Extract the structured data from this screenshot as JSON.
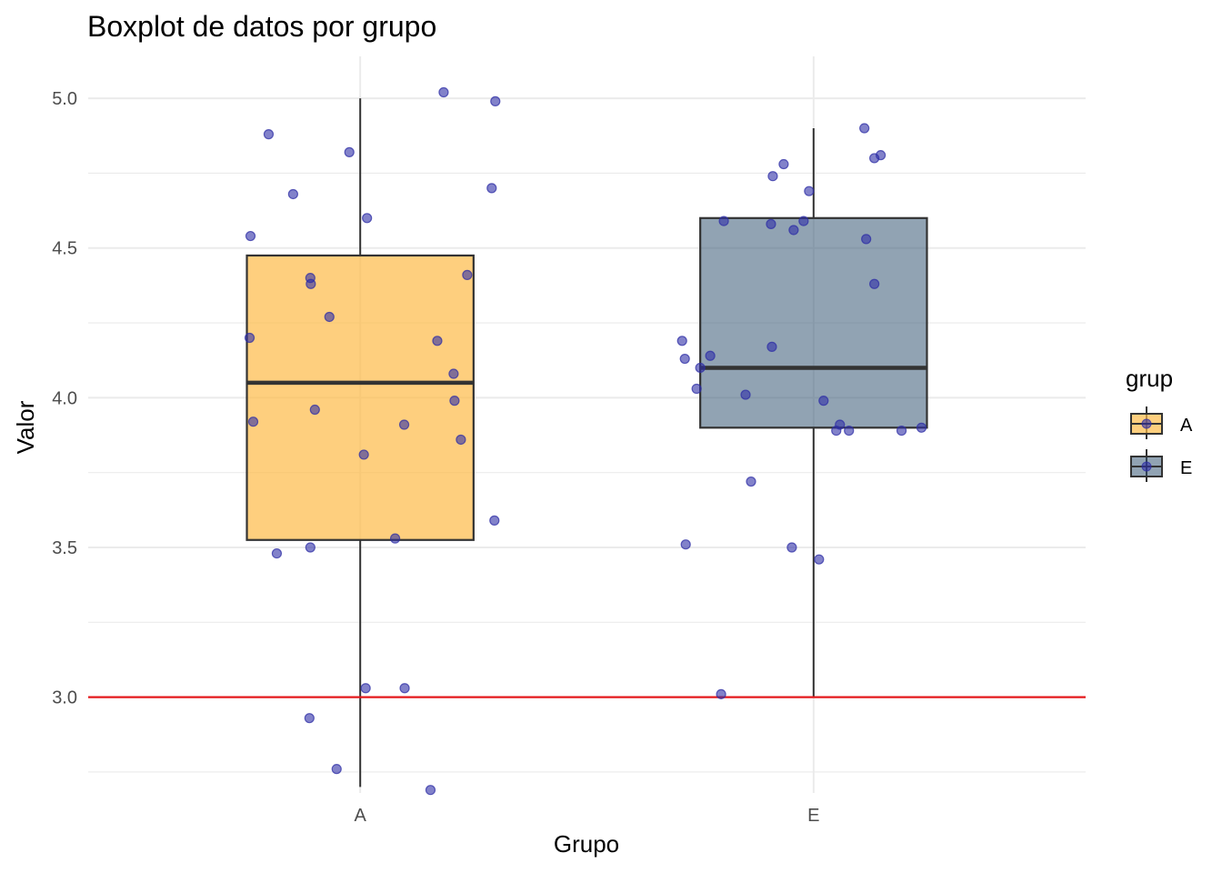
{
  "chart_data": {
    "type": "boxplot",
    "title": "Boxplot de datos por grupo",
    "xlabel": "Grupo",
    "ylabel": "Valor",
    "ylim": [
      2.68,
      5.14
    ],
    "yticks": [
      3.0,
      3.5,
      4.0,
      4.5,
      5.0
    ],
    "ytick_labels": [
      "3.0",
      "3.5",
      "4.0",
      "4.5",
      "5.0"
    ],
    "grid": true,
    "categories": [
      "A",
      "E"
    ],
    "boxes": [
      {
        "group": "A",
        "min": 2.7,
        "q1": 3.525,
        "median": 4.05,
        "q3": 4.475,
        "max": 5.0,
        "fill": "#FDBB47"
      },
      {
        "group": "E",
        "min": 3.0,
        "q1": 3.9,
        "median": 4.1,
        "q3": 4.6,
        "max": 4.9,
        "fill": "#2F5270"
      }
    ],
    "reference_line": {
      "y": 3.0,
      "color": "#E41A1C"
    },
    "point_color": "#2E2EA6",
    "points": [
      {
        "group": "A",
        "x": 0.758,
        "y": 4.54
      },
      {
        "group": "A",
        "x": 0.798,
        "y": 4.88
      },
      {
        "group": "A",
        "x": 0.852,
        "y": 4.68
      },
      {
        "group": "A",
        "x": 0.976,
        "y": 4.82
      },
      {
        "group": "A",
        "x": 1.015,
        "y": 4.6
      },
      {
        "group": "A",
        "x": 1.184,
        "y": 5.02
      },
      {
        "group": "A",
        "x": 1.298,
        "y": 4.99
      },
      {
        "group": "A",
        "x": 1.29,
        "y": 4.7
      },
      {
        "group": "A",
        "x": 0.89,
        "y": 4.4
      },
      {
        "group": "A",
        "x": 0.891,
        "y": 4.38
      },
      {
        "group": "A",
        "x": 0.932,
        "y": 4.27
      },
      {
        "group": "A",
        "x": 1.236,
        "y": 4.41
      },
      {
        "group": "A",
        "x": 0.756,
        "y": 4.2
      },
      {
        "group": "A",
        "x": 1.17,
        "y": 4.19
      },
      {
        "group": "A",
        "x": 1.206,
        "y": 4.08
      },
      {
        "group": "A",
        "x": 1.208,
        "y": 3.99
      },
      {
        "group": "A",
        "x": 0.9,
        "y": 3.96
      },
      {
        "group": "A",
        "x": 0.764,
        "y": 3.92
      },
      {
        "group": "A",
        "x": 1.097,
        "y": 3.91
      },
      {
        "group": "A",
        "x": 1.222,
        "y": 3.86
      },
      {
        "group": "A",
        "x": 1.008,
        "y": 3.81
      },
      {
        "group": "A",
        "x": 1.296,
        "y": 3.59
      },
      {
        "group": "A",
        "x": 1.077,
        "y": 3.53
      },
      {
        "group": "A",
        "x": 0.89,
        "y": 3.5
      },
      {
        "group": "A",
        "x": 0.816,
        "y": 3.48
      },
      {
        "group": "A",
        "x": 1.012,
        "y": 3.03
      },
      {
        "group": "A",
        "x": 1.098,
        "y": 3.03
      },
      {
        "group": "A",
        "x": 0.888,
        "y": 2.93
      },
      {
        "group": "A",
        "x": 0.948,
        "y": 2.76
      },
      {
        "group": "A",
        "x": 1.155,
        "y": 2.69
      },
      {
        "group": "E",
        "x": 2.112,
        "y": 4.9
      },
      {
        "group": "E",
        "x": 2.134,
        "y": 4.8
      },
      {
        "group": "E",
        "x": 2.148,
        "y": 4.81
      },
      {
        "group": "E",
        "x": 1.934,
        "y": 4.78
      },
      {
        "group": "E",
        "x": 1.91,
        "y": 4.74
      },
      {
        "group": "E",
        "x": 1.99,
        "y": 4.69
      },
      {
        "group": "E",
        "x": 1.802,
        "y": 4.59
      },
      {
        "group": "E",
        "x": 1.906,
        "y": 4.58
      },
      {
        "group": "E",
        "x": 1.978,
        "y": 4.59
      },
      {
        "group": "E",
        "x": 1.956,
        "y": 4.56
      },
      {
        "group": "E",
        "x": 2.116,
        "y": 4.53
      },
      {
        "group": "E",
        "x": 2.134,
        "y": 4.38
      },
      {
        "group": "E",
        "x": 1.71,
        "y": 4.19
      },
      {
        "group": "E",
        "x": 1.908,
        "y": 4.17
      },
      {
        "group": "E",
        "x": 1.772,
        "y": 4.14
      },
      {
        "group": "E",
        "x": 1.716,
        "y": 4.13
      },
      {
        "group": "E",
        "x": 1.75,
        "y": 4.1
      },
      {
        "group": "E",
        "x": 1.742,
        "y": 4.03
      },
      {
        "group": "E",
        "x": 1.85,
        "y": 4.01
      },
      {
        "group": "E",
        "x": 2.022,
        "y": 3.99
      },
      {
        "group": "E",
        "x": 2.058,
        "y": 3.91
      },
      {
        "group": "E",
        "x": 2.05,
        "y": 3.89
      },
      {
        "group": "E",
        "x": 2.078,
        "y": 3.89
      },
      {
        "group": "E",
        "x": 2.194,
        "y": 3.89
      },
      {
        "group": "E",
        "x": 2.238,
        "y": 3.9
      },
      {
        "group": "E",
        "x": 1.862,
        "y": 3.72
      },
      {
        "group": "E",
        "x": 1.718,
        "y": 3.51
      },
      {
        "group": "E",
        "x": 1.952,
        "y": 3.5
      },
      {
        "group": "E",
        "x": 2.012,
        "y": 3.46
      },
      {
        "group": "E",
        "x": 1.796,
        "y": 3.01
      }
    ],
    "legend": {
      "title": "grup",
      "position": "right",
      "entries": [
        {
          "label": "A",
          "fill": "#FDBB47"
        },
        {
          "label": "E",
          "fill": "#2F5270"
        }
      ]
    }
  }
}
